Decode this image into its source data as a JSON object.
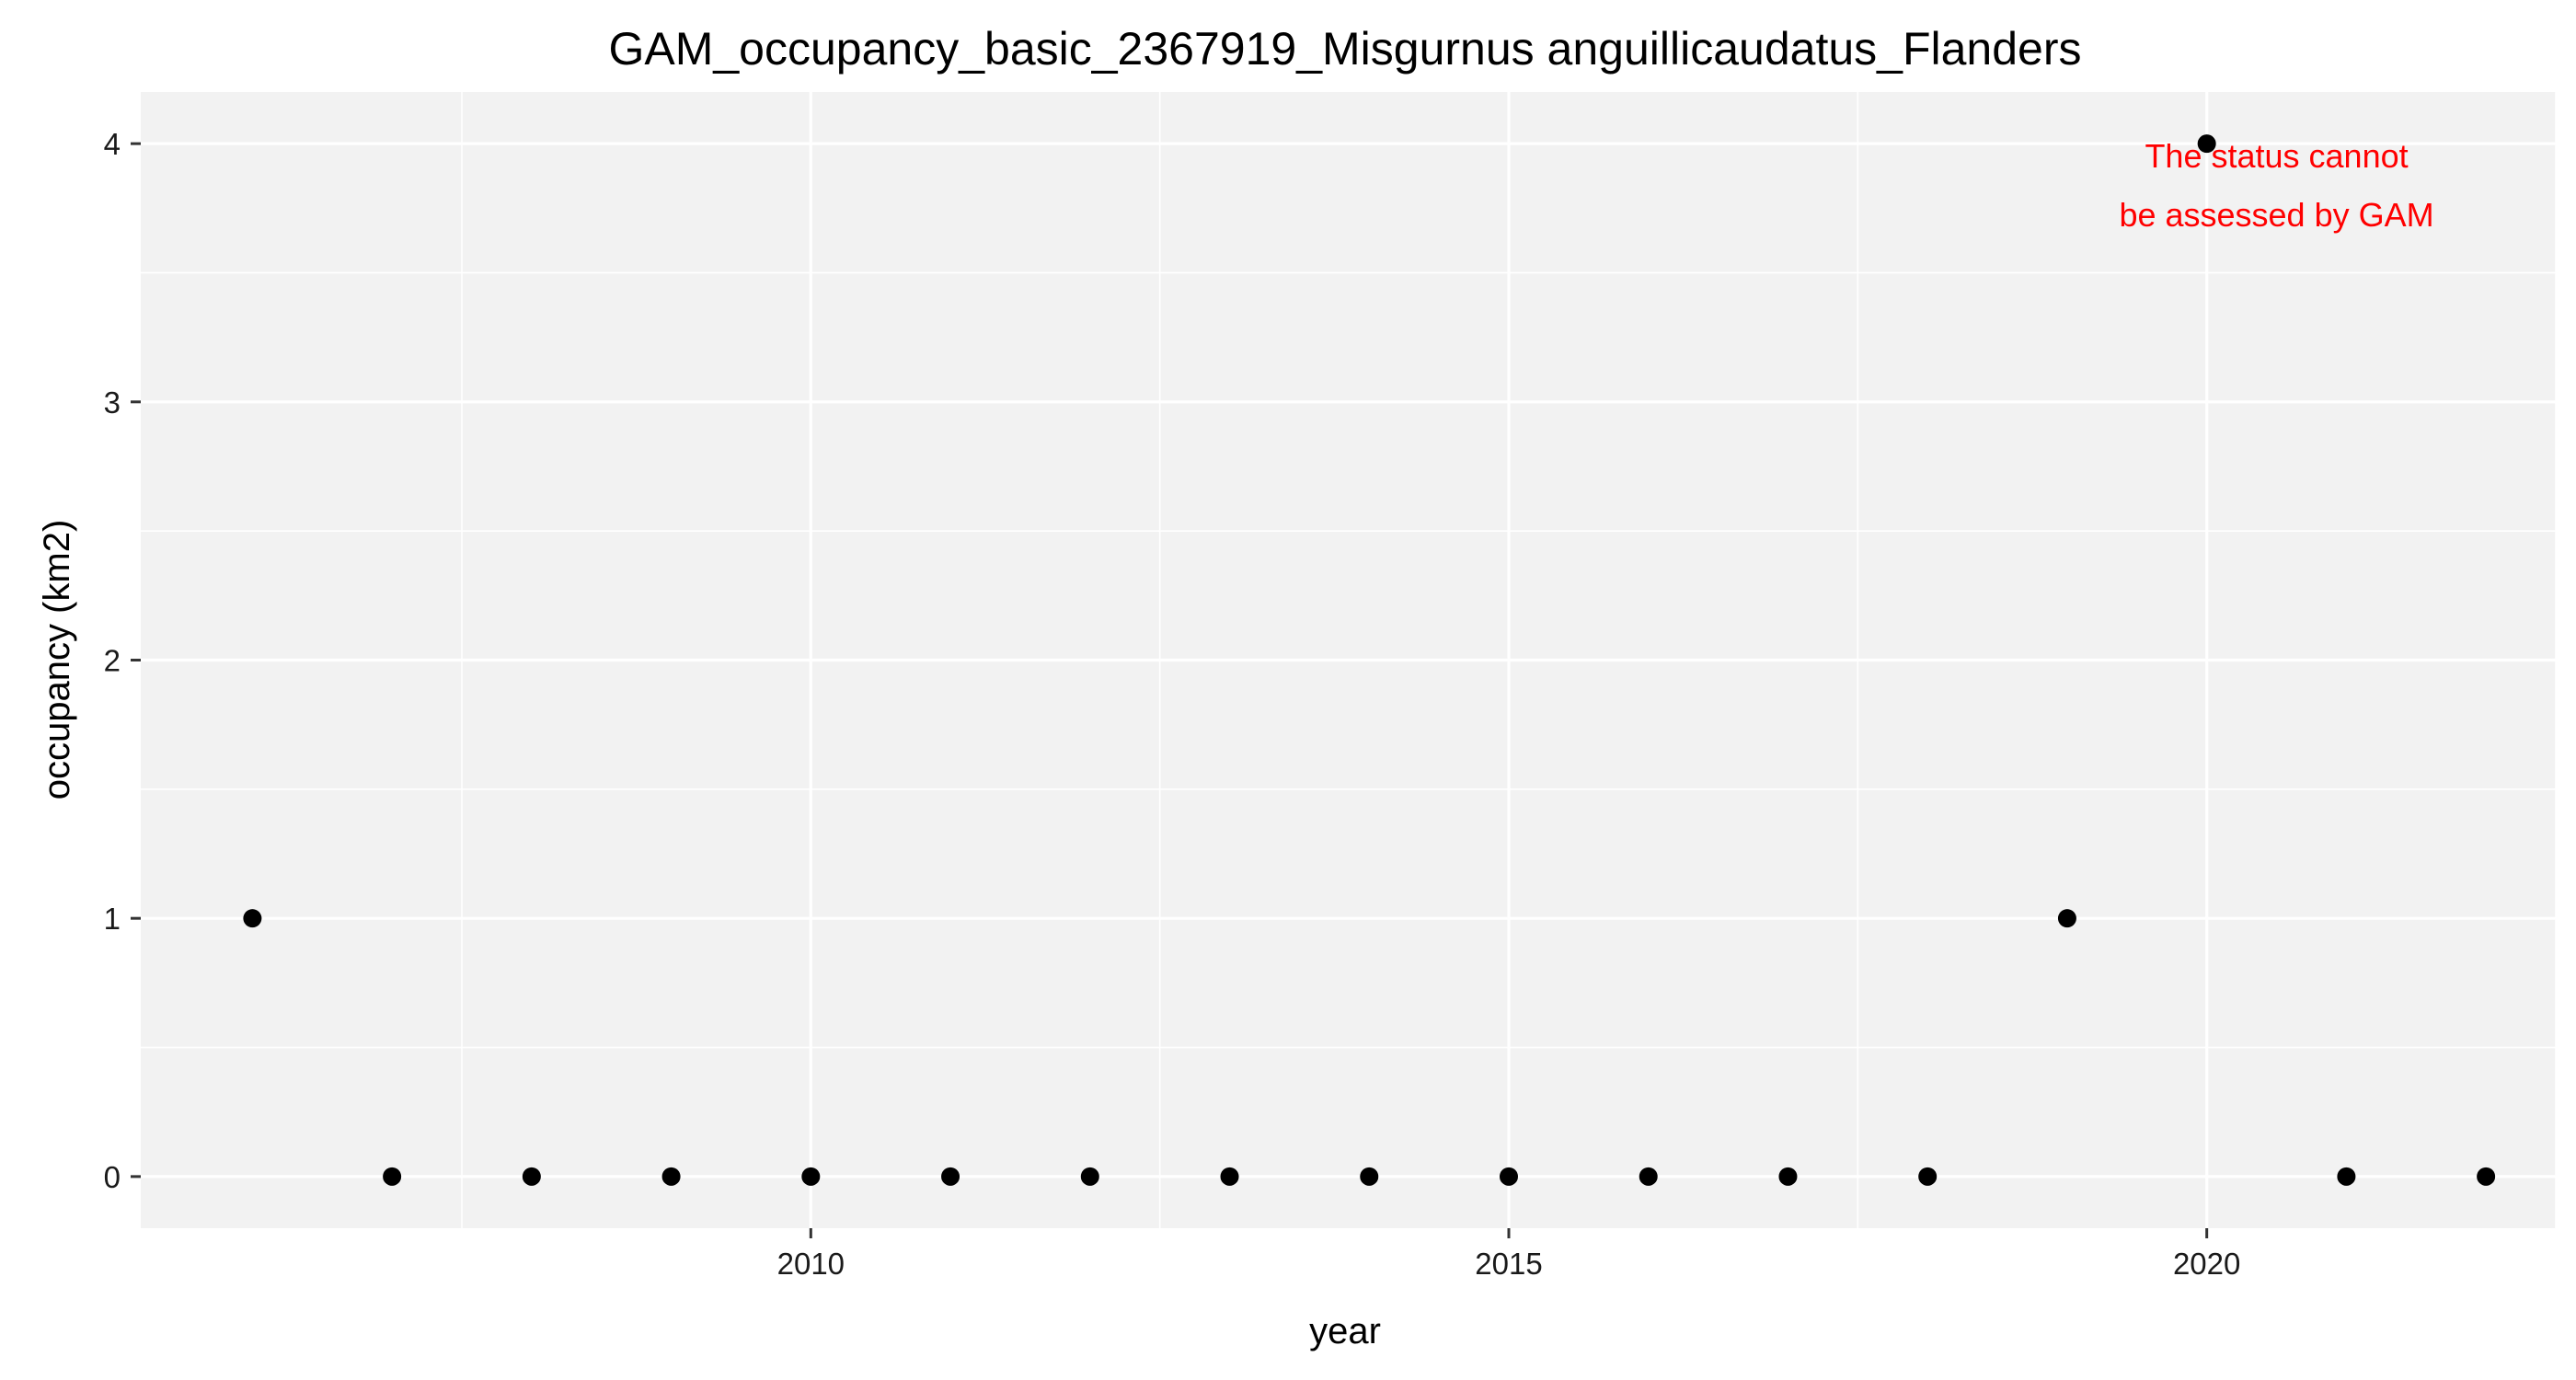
{
  "chart_data": {
    "type": "scatter",
    "title": "GAM_occupancy_basic_2367919_Misgurnus anguillicaudatus_Flanders",
    "xlabel": "year",
    "ylabel": "occupancy (km2)",
    "x": [
      2006,
      2007,
      2008,
      2009,
      2010,
      2011,
      2012,
      2013,
      2014,
      2015,
      2016,
      2017,
      2018,
      2019,
      2020,
      2021,
      2022
    ],
    "y": [
      1,
      0,
      0,
      0,
      0,
      0,
      0,
      0,
      0,
      0,
      0,
      0,
      0,
      1,
      4,
      0,
      0
    ],
    "xlim": [
      2005.2,
      2022.5
    ],
    "ylim": [
      -0.2,
      4.2
    ],
    "x_ticks": [
      2010,
      2015,
      2020
    ],
    "x_tick_labels": [
      "2010",
      "2015",
      "2020"
    ],
    "y_ticks": [
      0,
      1,
      2,
      3,
      4
    ],
    "y_tick_labels": [
      "0",
      "1",
      "2",
      "3",
      "4"
    ],
    "grid": true,
    "annotation": {
      "lines": [
        "The status cannot",
        "be assessed by GAM"
      ],
      "x": 2020.5,
      "y": 3.85,
      "color": "#ff0000"
    },
    "colors": {
      "panel_background": "#f2f2f2",
      "grid": "#ffffff",
      "point": "#000000",
      "annotation": "#ff0000"
    }
  }
}
